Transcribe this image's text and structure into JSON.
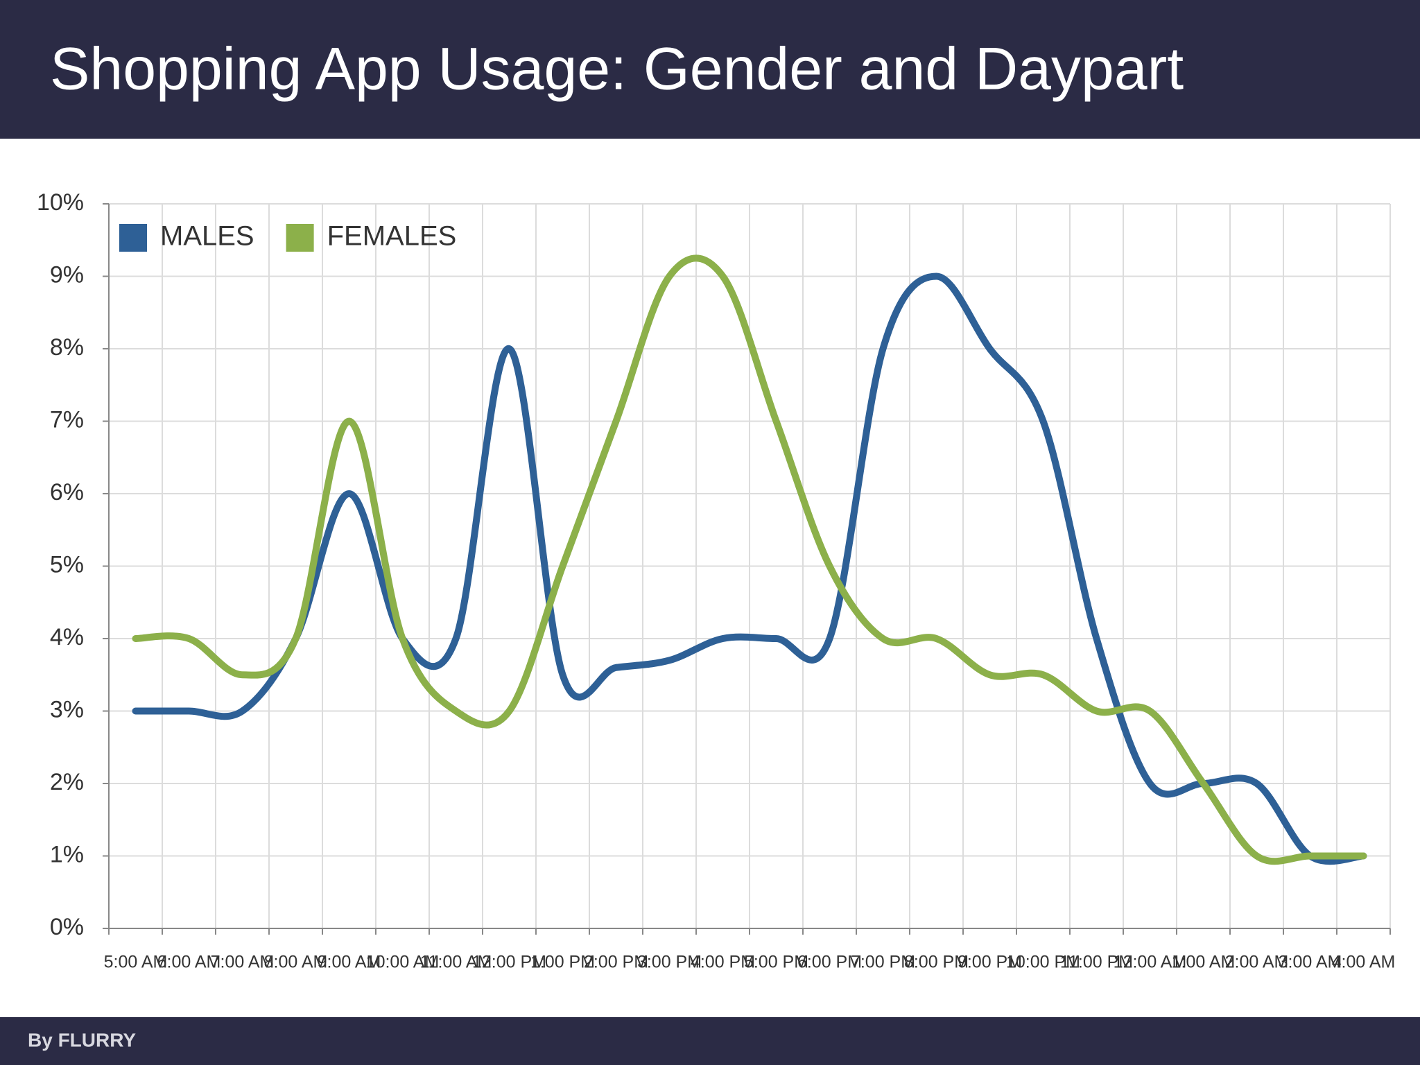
{
  "chart_data": {
    "type": "line",
    "title": "Shopping App Usage: Gender and Daypart",
    "categories": [
      "5:00 AM",
      "6:00 AM",
      "7:00 AM",
      "8:00 AM",
      "9:00 AM",
      "10:00 AM",
      "11:00 AM",
      "12:00 PM",
      "1:00 PM",
      "2:00 PM",
      "3:00 PM",
      "4:00 PM",
      "5:00 PM",
      "6:00 PM",
      "7:00 PM",
      "8:00 PM",
      "9:00 PM",
      "10:00 PM",
      "11:00 PM",
      "12:00 AM",
      "1:00 AM",
      "2:00 AM",
      "3:00 AM",
      "4:00 AM"
    ],
    "series": [
      {
        "name": "MALES",
        "color": "#2e6096",
        "values": [
          3,
          3,
          3,
          4,
          6,
          4,
          4,
          8,
          3.5,
          3.6,
          3.7,
          4,
          4,
          4,
          8,
          9,
          8,
          7,
          4,
          2,
          2,
          2,
          1,
          1
        ]
      },
      {
        "name": "FEMALES",
        "color": "#8cb04a",
        "values": [
          4,
          4,
          3.5,
          4,
          7,
          4,
          3,
          3,
          5,
          7,
          9,
          9,
          7,
          5,
          4,
          4,
          3.5,
          3.5,
          3,
          3,
          2,
          1,
          1,
          1
        ]
      }
    ],
    "ylim": [
      0,
      10
    ],
    "yticks": [
      {
        "value": 0,
        "label": "0%"
      },
      {
        "value": 1,
        "label": "1%"
      },
      {
        "value": 2,
        "label": "2%"
      },
      {
        "value": 3,
        "label": "3%"
      },
      {
        "value": 4,
        "label": "4%"
      },
      {
        "value": 5,
        "label": "5%"
      },
      {
        "value": 6,
        "label": "6%"
      },
      {
        "value": 7,
        "label": "7%"
      },
      {
        "value": 8,
        "label": "8%"
      },
      {
        "value": 9,
        "label": "9%"
      },
      {
        "value": 10,
        "label": "10%"
      }
    ],
    "grid": true,
    "legend": "top-left"
  },
  "footer": {
    "brand": "By FLURRY"
  }
}
